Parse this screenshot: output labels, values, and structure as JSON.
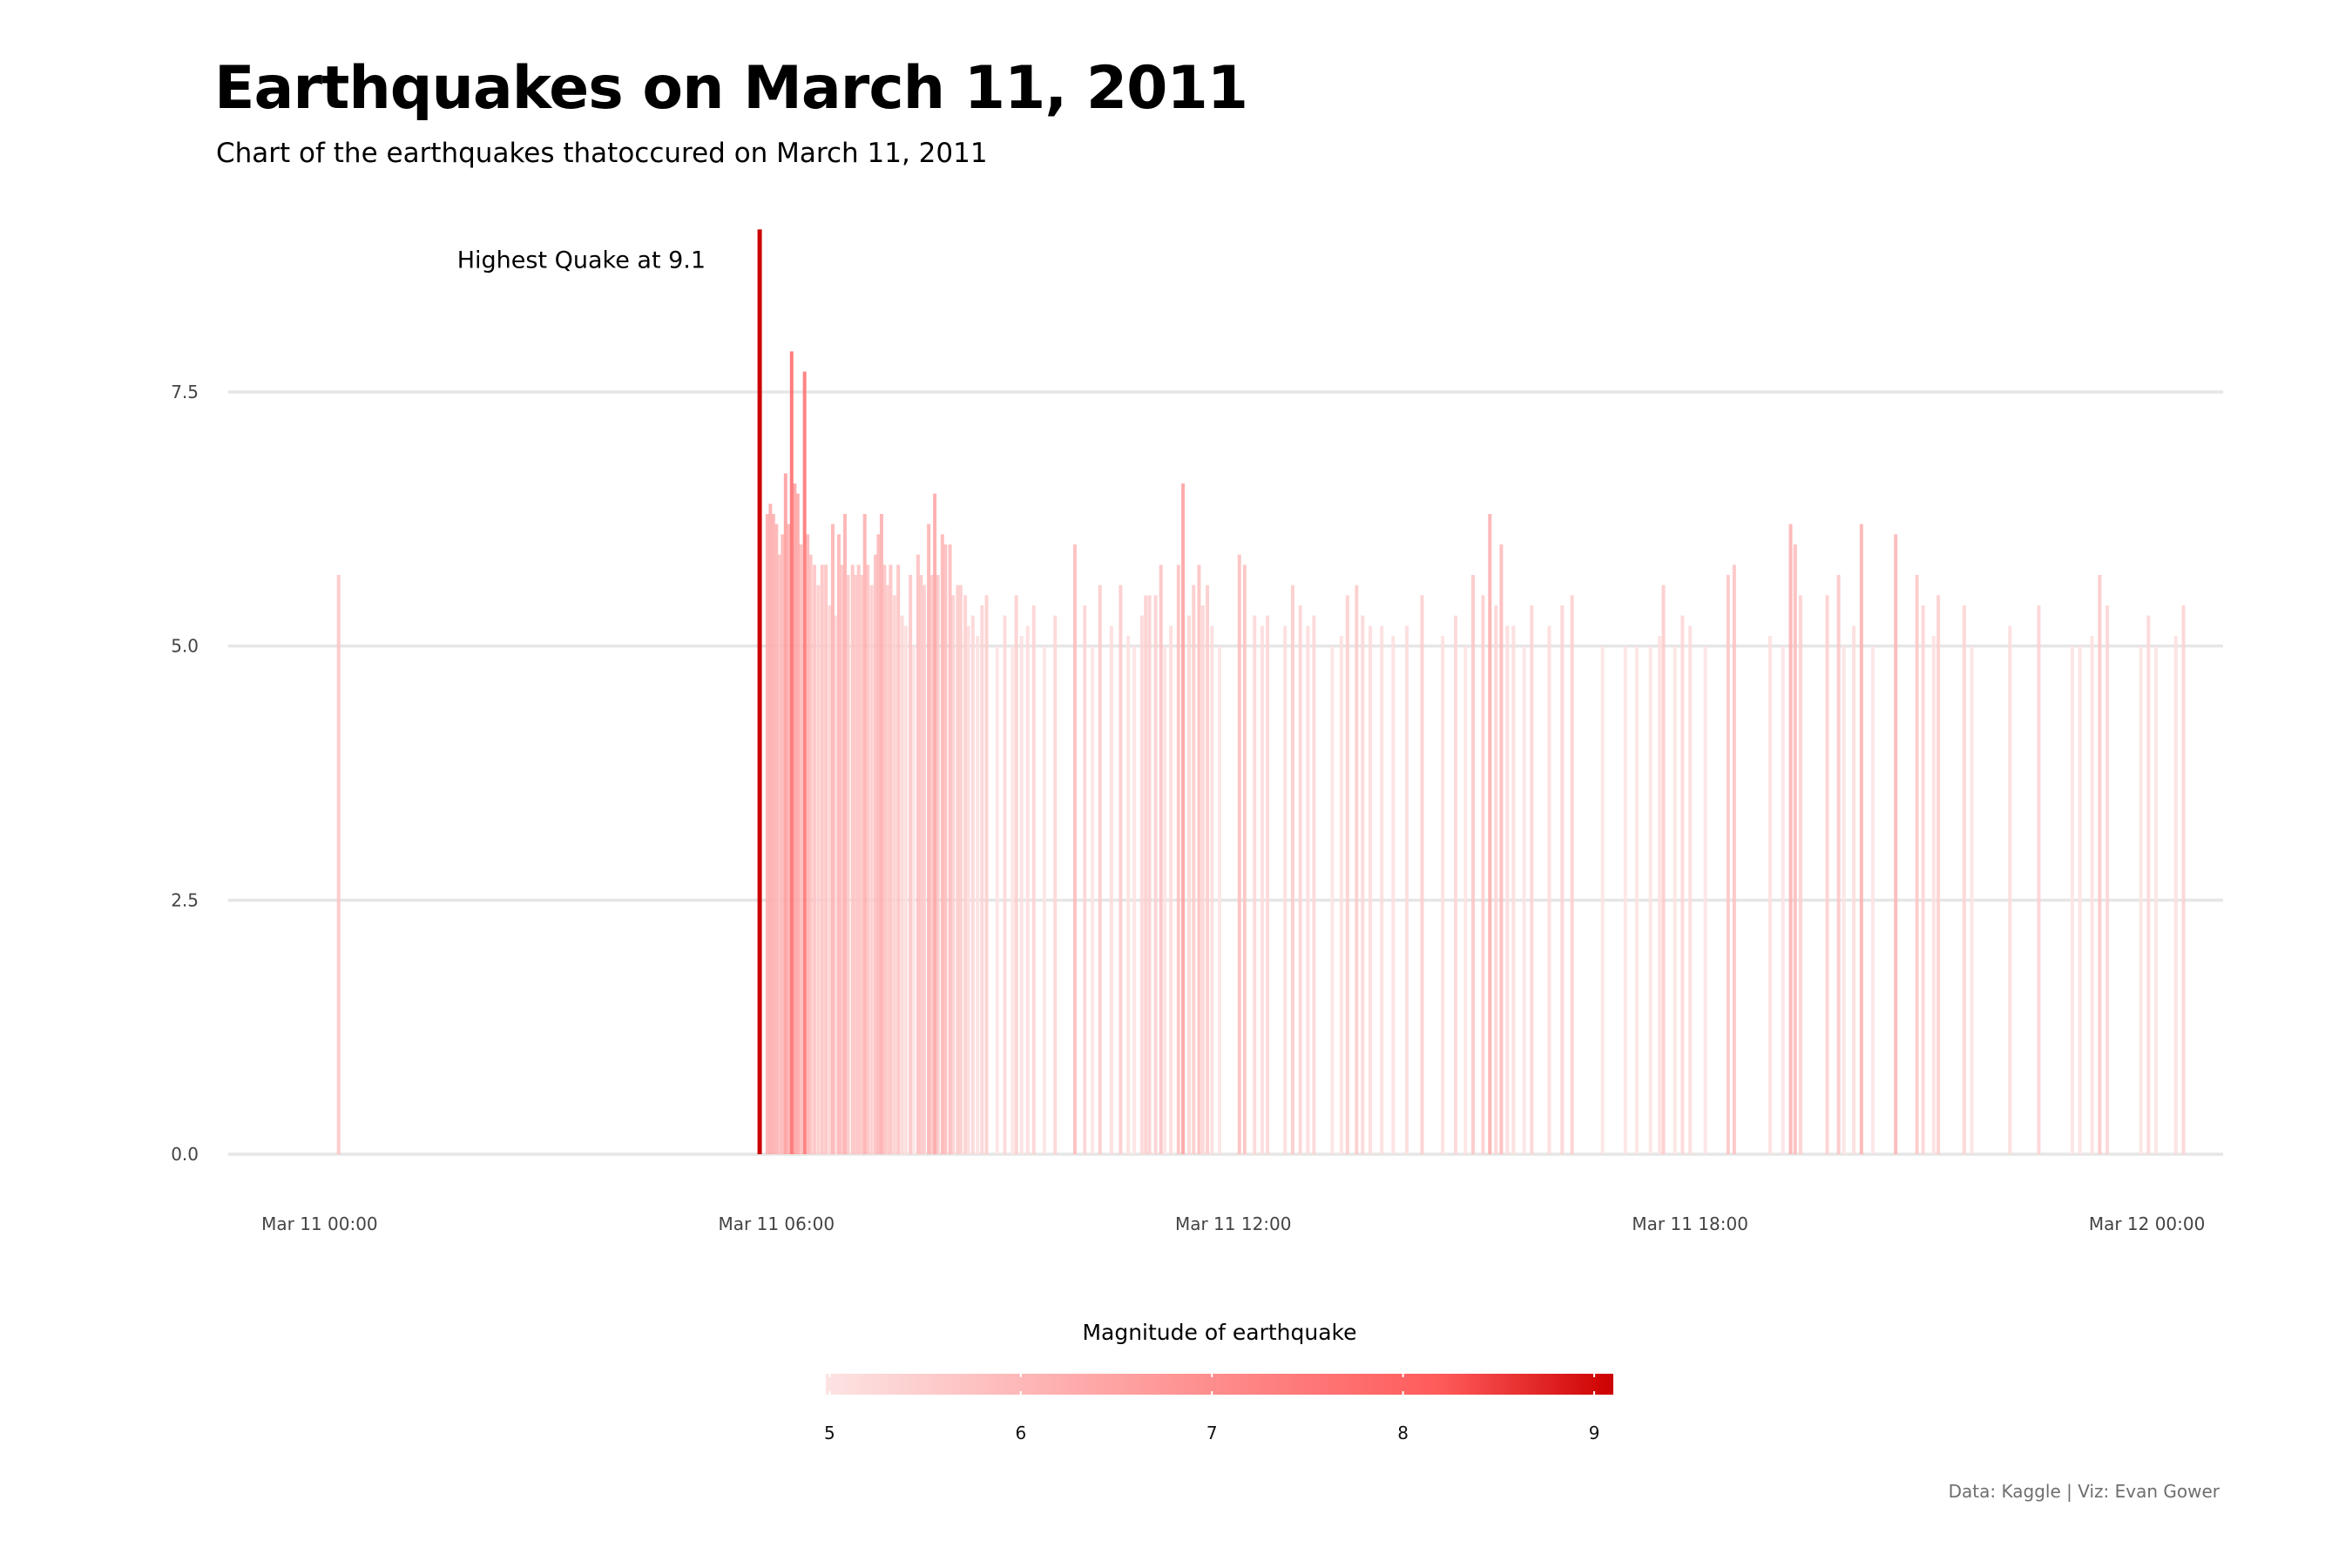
{
  "chart_data": {
    "type": "bar",
    "title": "Earthquakes on March 11, 2011",
    "subtitle": "Chart of the earthquakes thatoccured on March 11, 2011",
    "xlabel": "",
    "ylabel": "",
    "x_unit": "hours since Mar 11 00:00",
    "xlim": [
      -1.2,
      25
    ],
    "ylim": [
      0,
      9.3
    ],
    "x_ticks": [
      {
        "value": 0,
        "label": "Mar 11 00:00"
      },
      {
        "value": 6,
        "label": "Mar 11 06:00"
      },
      {
        "value": 12,
        "label": "Mar 11 12:00"
      },
      {
        "value": 18,
        "label": "Mar 11 18:00"
      },
      {
        "value": 24,
        "label": "Mar 12 00:00"
      }
    ],
    "y_ticks": [
      {
        "value": 0,
        "label": "0.0"
      },
      {
        "value": 2.5,
        "label": "2.5"
      },
      {
        "value": 5,
        "label": "5.0"
      },
      {
        "value": 7.5,
        "label": "7.5"
      }
    ],
    "grid": "horizontal",
    "annotation": {
      "text": "Highest Quake at 9.1",
      "x": 5.78,
      "y": 9.1
    },
    "legend": {
      "title": "Magnitude of earthquake",
      "placement": "bottom",
      "range": [
        4.98,
        9.1
      ],
      "ticks": [
        5,
        6,
        7,
        8,
        9
      ]
    },
    "color_scale": {
      "low": "#fde3e3",
      "mid": "#ff5a5a",
      "high": "#cc0000"
    },
    "caption": "Data: Kaggle | Viz: Evan Gower",
    "points": [
      [
        0.25,
        5.7
      ],
      [
        5.78,
        9.1
      ],
      [
        5.88,
        6.3
      ],
      [
        5.92,
        6.4
      ],
      [
        5.96,
        6.3
      ],
      [
        6.0,
        6.2
      ],
      [
        6.04,
        5.9
      ],
      [
        6.08,
        6.1
      ],
      [
        6.12,
        6.7
      ],
      [
        6.16,
        6.2
      ],
      [
        6.2,
        7.9
      ],
      [
        6.24,
        6.6
      ],
      [
        6.28,
        6.5
      ],
      [
        6.32,
        6.0
      ],
      [
        6.37,
        7.7
      ],
      [
        6.41,
        6.1
      ],
      [
        6.45,
        5.9
      ],
      [
        6.5,
        5.8
      ],
      [
        6.55,
        5.6
      ],
      [
        6.6,
        5.8
      ],
      [
        6.65,
        5.8
      ],
      [
        6.7,
        5.4
      ],
      [
        6.74,
        6.2
      ],
      [
        6.78,
        5.3
      ],
      [
        6.82,
        6.1
      ],
      [
        6.86,
        5.8
      ],
      [
        6.9,
        6.3
      ],
      [
        6.94,
        5.7
      ],
      [
        7.0,
        5.8
      ],
      [
        7.04,
        5.7
      ],
      [
        7.08,
        5.8
      ],
      [
        7.12,
        5.7
      ],
      [
        7.16,
        6.3
      ],
      [
        7.2,
        5.8
      ],
      [
        7.25,
        5.6
      ],
      [
        7.3,
        5.9
      ],
      [
        7.34,
        6.1
      ],
      [
        7.38,
        6.3
      ],
      [
        7.42,
        5.8
      ],
      [
        7.46,
        5.6
      ],
      [
        7.5,
        5.8
      ],
      [
        7.55,
        5.5
      ],
      [
        7.6,
        5.8
      ],
      [
        7.65,
        5.3
      ],
      [
        7.7,
        5.2
      ],
      [
        7.76,
        5.7
      ],
      [
        7.8,
        5.0
      ],
      [
        7.86,
        5.9
      ],
      [
        7.9,
        5.7
      ],
      [
        7.94,
        5.6
      ],
      [
        8.0,
        6.2
      ],
      [
        8.04,
        5.7
      ],
      [
        8.08,
        6.5
      ],
      [
        8.12,
        5.7
      ],
      [
        8.18,
        6.1
      ],
      [
        8.22,
        6.0
      ],
      [
        8.28,
        6.0
      ],
      [
        8.32,
        5.5
      ],
      [
        8.38,
        5.6
      ],
      [
        8.42,
        5.6
      ],
      [
        8.48,
        5.5
      ],
      [
        8.52,
        5.2
      ],
      [
        8.58,
        5.3
      ],
      [
        8.64,
        5.1
      ],
      [
        8.7,
        5.4
      ],
      [
        8.76,
        5.5
      ],
      [
        8.9,
        5.0
      ],
      [
        9.0,
        5.3
      ],
      [
        9.1,
        5.0
      ],
      [
        9.15,
        5.5
      ],
      [
        9.22,
        5.1
      ],
      [
        9.3,
        5.2
      ],
      [
        9.38,
        5.4
      ],
      [
        9.52,
        5.0
      ],
      [
        9.66,
        5.3
      ],
      [
        9.92,
        6.0
      ],
      [
        10.05,
        5.4
      ],
      [
        10.15,
        5.0
      ],
      [
        10.25,
        5.6
      ],
      [
        10.4,
        5.2
      ],
      [
        10.52,
        5.6
      ],
      [
        10.62,
        5.1
      ],
      [
        10.7,
        5.0
      ],
      [
        10.8,
        5.3
      ],
      [
        10.85,
        5.5
      ],
      [
        10.9,
        5.5
      ],
      [
        10.98,
        5.5
      ],
      [
        11.05,
        5.8
      ],
      [
        11.1,
        5.0
      ],
      [
        11.18,
        5.2
      ],
      [
        11.28,
        5.8
      ],
      [
        11.34,
        6.6
      ],
      [
        11.42,
        5.3
      ],
      [
        11.48,
        5.6
      ],
      [
        11.55,
        5.8
      ],
      [
        11.6,
        5.4
      ],
      [
        11.66,
        5.6
      ],
      [
        11.72,
        5.2
      ],
      [
        11.82,
        5.0
      ],
      [
        12.08,
        5.9
      ],
      [
        12.15,
        5.8
      ],
      [
        12.28,
        5.3
      ],
      [
        12.38,
        5.2
      ],
      [
        12.45,
        5.3
      ],
      [
        12.68,
        5.2
      ],
      [
        12.78,
        5.6
      ],
      [
        12.88,
        5.4
      ],
      [
        12.98,
        5.2
      ],
      [
        13.06,
        5.3
      ],
      [
        13.3,
        5.0
      ],
      [
        13.42,
        5.1
      ],
      [
        13.5,
        5.5
      ],
      [
        13.62,
        5.6
      ],
      [
        13.7,
        5.3
      ],
      [
        13.8,
        5.2
      ],
      [
        13.95,
        5.2
      ],
      [
        14.1,
        5.1
      ],
      [
        14.28,
        5.2
      ],
      [
        14.48,
        5.5
      ],
      [
        14.75,
        5.1
      ],
      [
        14.92,
        5.3
      ],
      [
        15.05,
        5.0
      ],
      [
        15.15,
        5.7
      ],
      [
        15.28,
        5.5
      ],
      [
        15.37,
        6.3
      ],
      [
        15.45,
        5.4
      ],
      [
        15.52,
        6.0
      ],
      [
        15.6,
        5.2
      ],
      [
        15.68,
        5.2
      ],
      [
        15.82,
        5.0
      ],
      [
        15.92,
        5.4
      ],
      [
        16.15,
        5.2
      ],
      [
        16.32,
        5.4
      ],
      [
        16.45,
        5.5
      ],
      [
        16.85,
        5.0
      ],
      [
        17.15,
        5.0
      ],
      [
        17.3,
        5.0
      ],
      [
        17.48,
        5.0
      ],
      [
        17.6,
        5.1
      ],
      [
        17.65,
        5.6
      ],
      [
        17.8,
        5.0
      ],
      [
        17.9,
        5.3
      ],
      [
        18.0,
        5.2
      ],
      [
        18.2,
        5.0
      ],
      [
        18.5,
        5.7
      ],
      [
        18.58,
        5.8
      ],
      [
        19.05,
        5.1
      ],
      [
        19.22,
        5.0
      ],
      [
        19.32,
        6.2
      ],
      [
        19.38,
        6.0
      ],
      [
        19.45,
        5.5
      ],
      [
        19.8,
        5.5
      ],
      [
        19.95,
        5.7
      ],
      [
        20.02,
        5.0
      ],
      [
        20.15,
        5.2
      ],
      [
        20.25,
        6.2
      ],
      [
        20.4,
        5.0
      ],
      [
        20.7,
        6.1
      ],
      [
        20.98,
        5.7
      ],
      [
        21.06,
        5.4
      ],
      [
        21.2,
        5.1
      ],
      [
        21.26,
        5.5
      ],
      [
        21.6,
        5.4
      ],
      [
        21.7,
        5.0
      ],
      [
        22.2,
        5.2
      ],
      [
        22.58,
        5.4
      ],
      [
        23.02,
        5.0
      ],
      [
        23.12,
        5.0
      ],
      [
        23.28,
        5.1
      ],
      [
        23.38,
        5.7
      ],
      [
        23.48,
        5.4
      ],
      [
        23.92,
        5.0
      ],
      [
        24.02,
        5.3
      ],
      [
        24.12,
        5.0
      ],
      [
        24.38,
        5.1
      ],
      [
        24.48,
        5.4
      ]
    ]
  }
}
